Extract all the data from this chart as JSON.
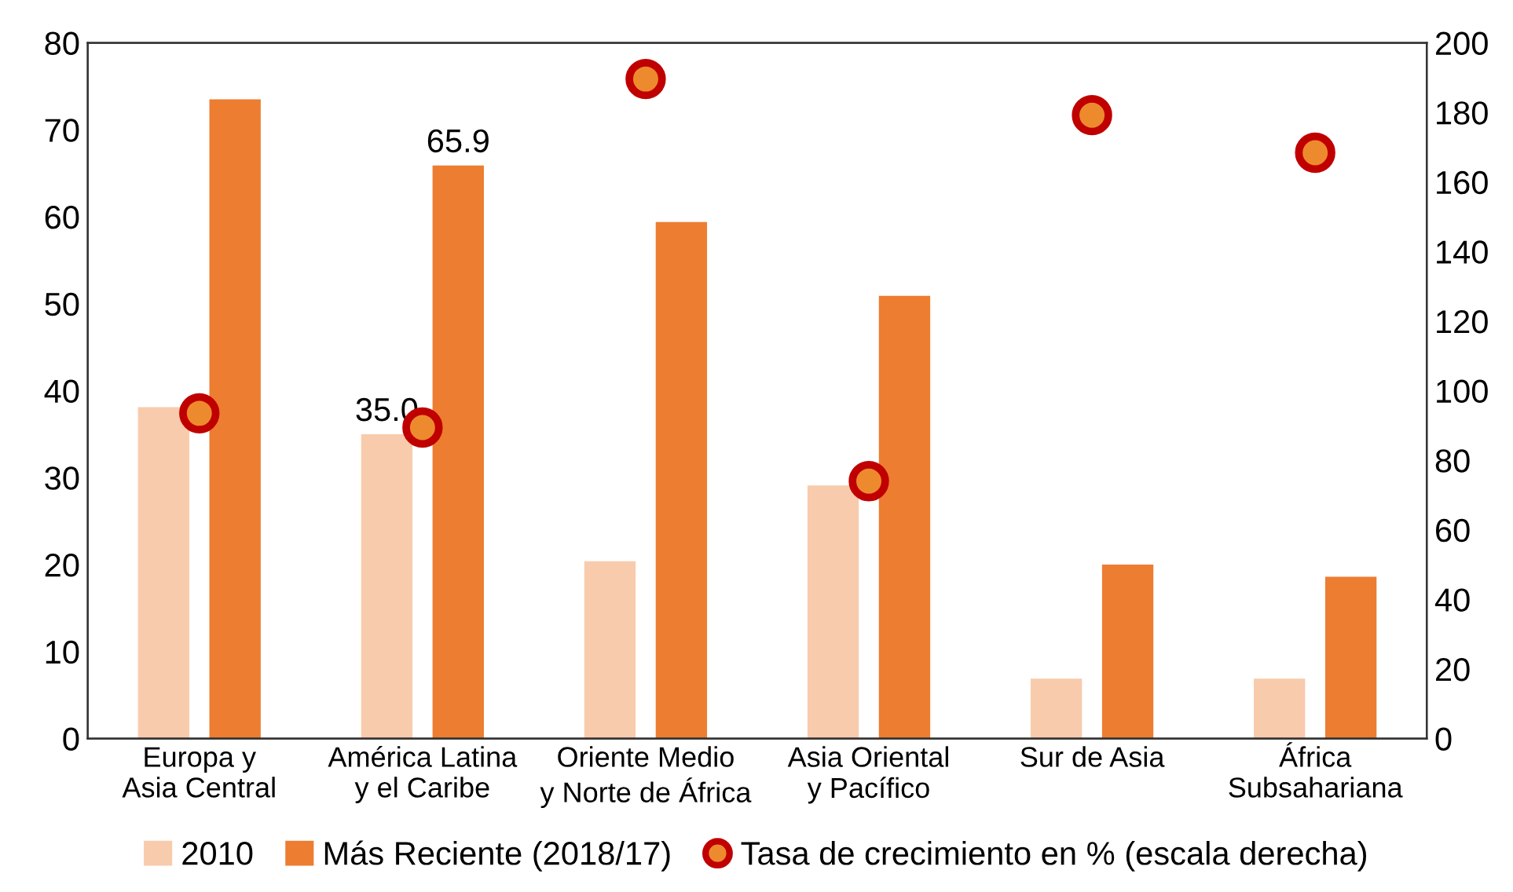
{
  "chart_data": {
    "type": "bar",
    "categories": [
      "Europa y\nAsia Central",
      "América Latina\ny el Caribe",
      "Oriente Medio\ny Norte de África",
      "Asia Oriental\ny Pacífico",
      "Sur de Asia",
      "África\nSubsahariana"
    ],
    "series": [
      {
        "name": "2010",
        "color": "#f8cbad",
        "values": [
          38.1,
          35.0,
          20.4,
          29.1,
          6.9,
          6.9
        ],
        "value_labels": [
          null,
          "35.0",
          null,
          null,
          null,
          null
        ]
      },
      {
        "name": "Más Reciente (2018/17)",
        "color": "#ed7d31",
        "values": [
          73.5,
          65.9,
          59.4,
          50.9,
          20.0,
          18.6
        ],
        "value_labels": [
          null,
          "65.9",
          null,
          null,
          null,
          null
        ]
      },
      {
        "name": "Tasa de crecimiento en % (escala derecha)",
        "type": "scatter",
        "axis": "y2",
        "marker": "circle",
        "color": "#c00000",
        "values": [
          93.5,
          89.4,
          189.6,
          74.0,
          179.2,
          168.4
        ]
      }
    ],
    "ylim": [
      0,
      80
    ],
    "yticks": [
      0,
      10,
      20,
      30,
      40,
      50,
      60,
      70,
      80
    ],
    "y2lim": [
      0,
      200
    ],
    "y2ticks": [
      0,
      20,
      40,
      60,
      80,
      100,
      120,
      140,
      160,
      180,
      200
    ],
    "grid": false,
    "legend": "bottom"
  }
}
